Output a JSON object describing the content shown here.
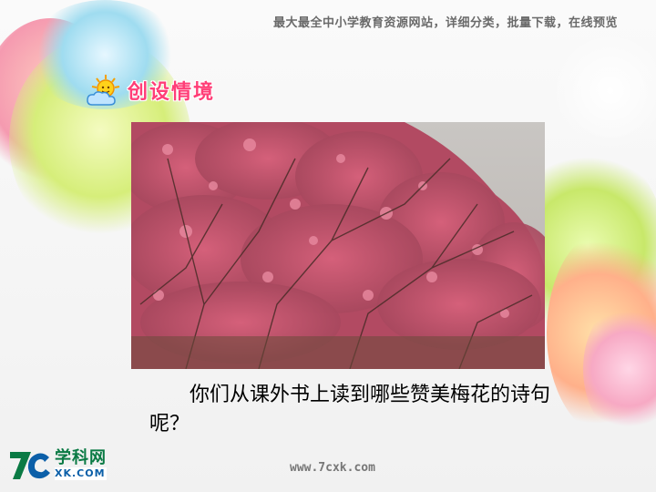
{
  "header": {
    "site_text": "最大最全中小学教育资源网站，详细分类，批量下载，在线预览"
  },
  "section": {
    "title": "创设情境",
    "icon": "sun-cloud-icon"
  },
  "photo": {
    "alt": "梅花"
  },
  "question": {
    "text": "你们从课外书上读到哪些赞美梅花的诗句呢？"
  },
  "logo": {
    "mark": "7c",
    "cn": "学科网",
    "en": "XK.COM"
  },
  "footer": {
    "url": "www.7cxk.com"
  },
  "colors": {
    "title_pink": "#ff3e77",
    "logo_green": "#0a7a44",
    "logo_blue": "#0b5fa8"
  }
}
